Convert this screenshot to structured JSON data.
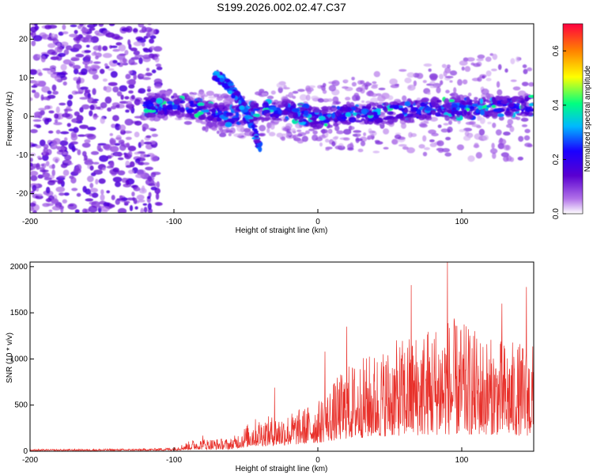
{
  "title": "S199.2026.002.02.47.C37",
  "chart_data": [
    {
      "type": "heatmap",
      "name": "spectrogram",
      "xlabel": "Height of straight line (km)",
      "ylabel": "Frequency (Hz)",
      "xlim": [
        -200,
        150
      ],
      "ylim": [
        -25,
        24
      ],
      "xticks": [
        -200,
        -100,
        0,
        100
      ],
      "yticks": [
        -20,
        -10,
        0,
        10,
        20
      ],
      "colorbar": {
        "label": "Normalized spectral amplitude",
        "range": [
          0,
          0.7
        ],
        "ticks": [
          0.0,
          0.2,
          0.4,
          0.6
        ],
        "colors": [
          "#ffffff",
          "#b070e8",
          "#5a00d0",
          "#1a00ff",
          "#00b8ff",
          "#00ff80",
          "#ffff00",
          "#ff8000",
          "#ff0040"
        ]
      },
      "features": {
        "noise_region_x": [
          -200,
          -120
        ],
        "main_band": [
          {
            "x": -120,
            "y": 2.5
          },
          {
            "x": -100,
            "y": 3
          },
          {
            "x": -85,
            "y": 2
          },
          {
            "x": -60,
            "y": 0
          },
          {
            "x": -40,
            "y": 1.5
          },
          {
            "x": -20,
            "y": 1.5
          },
          {
            "x": 0,
            "y": -0.5
          },
          {
            "x": 20,
            "y": 0.5
          },
          {
            "x": 50,
            "y": 1
          },
          {
            "x": 80,
            "y": 2
          },
          {
            "x": 100,
            "y": 2
          },
          {
            "x": 150,
            "y": 3
          }
        ],
        "branch": [
          {
            "x": -72,
            "y": 11
          },
          {
            "x": -62,
            "y": 8
          },
          {
            "x": -50,
            "y": 2
          },
          {
            "x": -45,
            "y": -3
          },
          {
            "x": -40,
            "y": -8
          }
        ]
      }
    },
    {
      "type": "line",
      "name": "snr",
      "xlabel": "Height of straight line (km)",
      "ylabel": "SNR (10 * v/v)",
      "xlim": [
        -200,
        150
      ],
      "ylim": [
        0,
        2050
      ],
      "xticks": [
        -200,
        -100,
        0,
        100
      ],
      "yticks": [
        0,
        500,
        1000,
        1500,
        2000
      ],
      "color": "#e8302a",
      "envelope": [
        {
          "x": -200,
          "base": 20,
          "amp": 15
        },
        {
          "x": -120,
          "base": 25,
          "amp": 20
        },
        {
          "x": -100,
          "base": 30,
          "amp": 35
        },
        {
          "x": -85,
          "base": 60,
          "amp": 120
        },
        {
          "x": -60,
          "base": 70,
          "amp": 120
        },
        {
          "x": -45,
          "base": 180,
          "amp": 300
        },
        {
          "x": -20,
          "base": 220,
          "amp": 350
        },
        {
          "x": 0,
          "base": 300,
          "amp": 450
        },
        {
          "x": 20,
          "base": 450,
          "amp": 800
        },
        {
          "x": 50,
          "base": 550,
          "amp": 1000
        },
        {
          "x": 90,
          "base": 600,
          "amp": 1300
        },
        {
          "x": 120,
          "base": 600,
          "amp": 1050
        },
        {
          "x": 150,
          "base": 550,
          "amp": 1000
        }
      ],
      "peaks": [
        {
          "x": 90,
          "y": 2050
        },
        {
          "x": 65,
          "y": 1800
        },
        {
          "x": 145,
          "y": 1780
        },
        {
          "x": 128,
          "y": 1600
        },
        {
          "x": 20,
          "y": 1350
        },
        {
          "x": 5,
          "y": 1080
        },
        {
          "x": -30,
          "y": 690
        },
        {
          "x": -80,
          "y": 170
        }
      ]
    }
  ]
}
